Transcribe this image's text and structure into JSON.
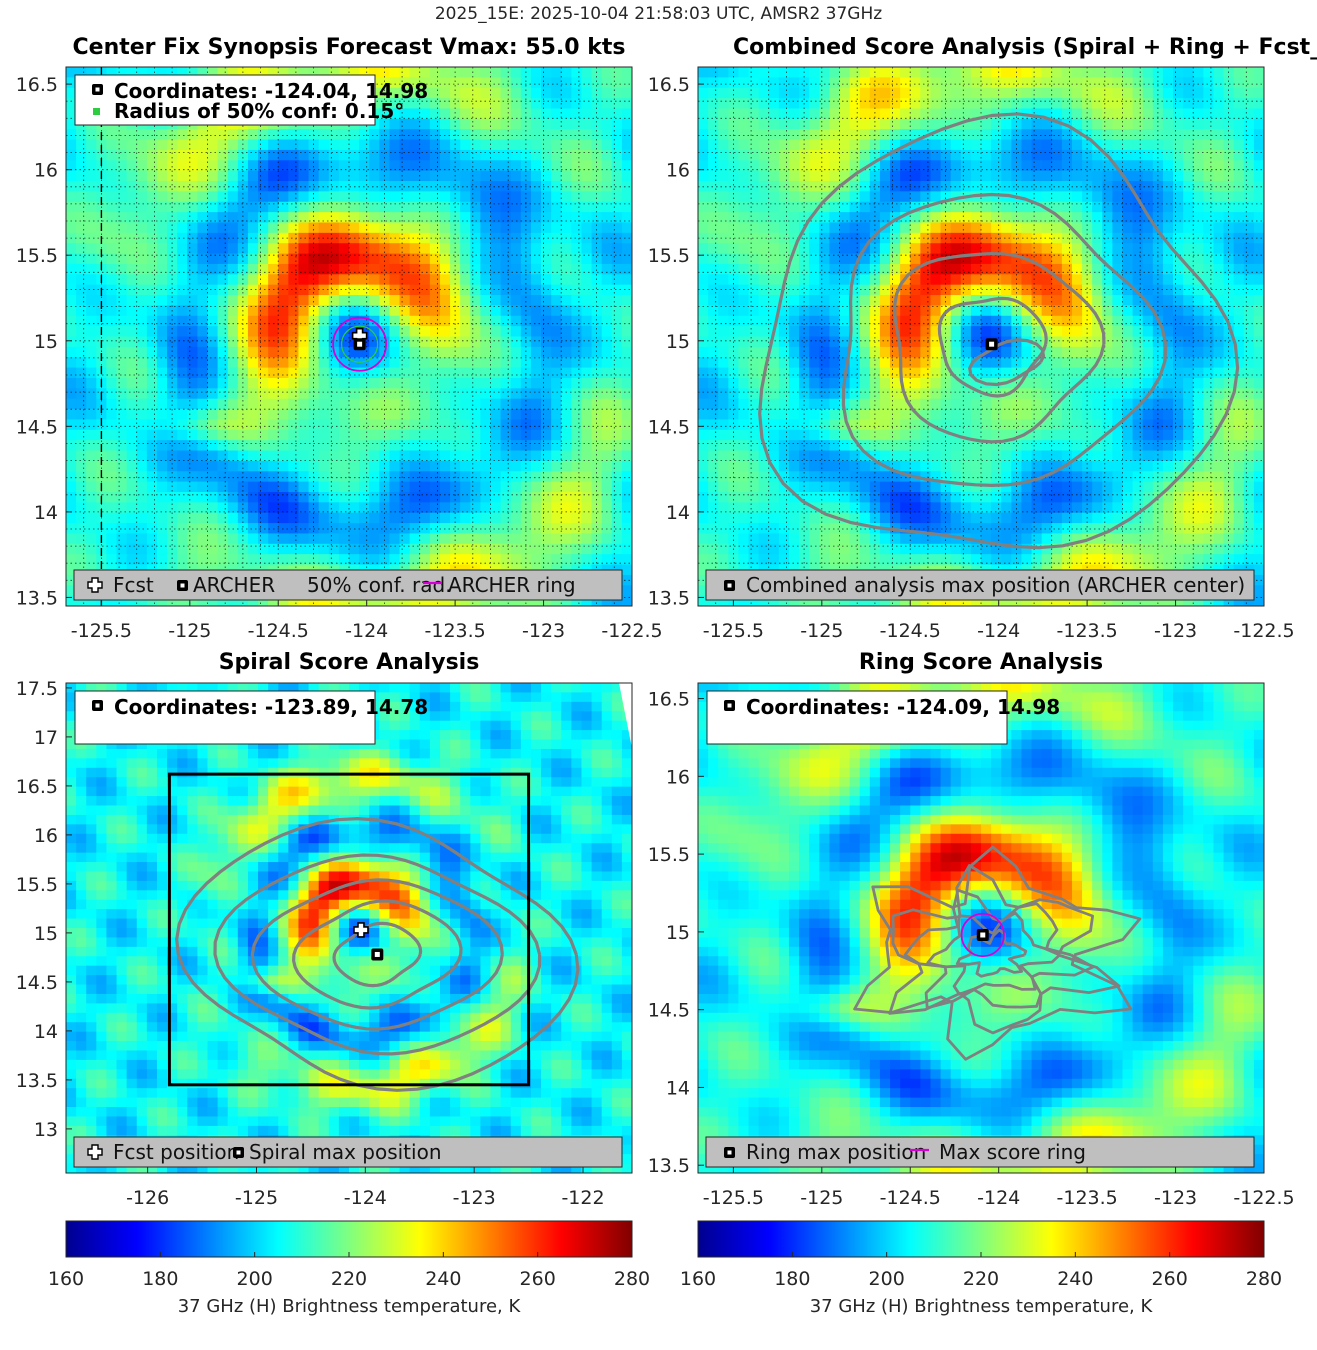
{
  "suptitle": "2025_15E: 2025-10-04 21:58:03 UTC, AMSR2 37GHz",
  "colorbar": {
    "colormap": "jet",
    "min": 160,
    "max": 280,
    "ticks": [
      "160",
      "180",
      "200",
      "220",
      "240",
      "260",
      "280"
    ],
    "label": "37 GHz (H) Brightness temperature, K"
  },
  "chart_data": [
    {
      "id": "p1",
      "type": "heatmap",
      "title": "Center Fix Synopsis     Forecast Vmax: 55.0 kts",
      "xlim": [
        -125.7,
        -122.5
      ],
      "ylim": [
        13.45,
        16.6
      ],
      "xticks": [
        -125.5,
        -125,
        -124.5,
        -124,
        -123.5,
        -123,
        -122.5
      ],
      "xtick_labels": [
        "-125.5",
        "-125",
        "-124.5",
        "-124",
        "-123.5",
        "-123",
        "-122.5"
      ],
      "yticks": [
        13.5,
        14,
        14.5,
        15,
        15.5,
        16,
        16.5
      ],
      "ytick_labels": [
        "13.5",
        "14",
        "14.5",
        "15",
        "15.5",
        "16",
        "16.5"
      ],
      "grid": true,
      "center": {
        "lon": -124.04,
        "lat": 14.98
      },
      "fcst": {
        "lon": -124.04,
        "lat": 15.03
      },
      "conf_radius": 0.15,
      "infobox": {
        "line1": "Coordinates: -124.04, 14.98",
        "line2": "Radius of 50% conf: 0.15°"
      },
      "legend": [
        "Fcst",
        "ARCHER",
        "50% conf. rad.",
        "ARCHER ring"
      ]
    },
    {
      "id": "p2",
      "type": "heatmap",
      "title": "Combined Score Analysis (Spiral + Ring + Fcst_Pe",
      "xlim": [
        -125.7,
        -122.5
      ],
      "ylim": [
        13.45,
        16.6
      ],
      "xticks": [
        -125.5,
        -125,
        -124.5,
        -124,
        -123.5,
        -123,
        -122.5
      ],
      "xtick_labels": [
        "-125.5",
        "-125",
        "-124.5",
        "-124",
        "-123.5",
        "-123",
        "-122.5"
      ],
      "yticks": [
        13.5,
        14,
        14.5,
        15,
        15.5,
        16,
        16.5
      ],
      "ytick_labels": [
        "13.5",
        "14",
        "14.5",
        "15",
        "15.5",
        "16",
        "16.5"
      ],
      "grid": true,
      "center": {
        "lon": -124.04,
        "lat": 14.98
      },
      "legend": [
        "Combined analysis max position (ARCHER center)"
      ]
    },
    {
      "id": "p3",
      "type": "heatmap",
      "title": "Spiral Score Analysis",
      "xlim": [
        -126.75,
        -121.55
      ],
      "ylim": [
        12.55,
        17.55
      ],
      "xticks": [
        -126,
        -125,
        -124,
        -123,
        -122
      ],
      "xtick_labels": [
        "-126",
        "-125",
        "-124",
        "-123",
        "-122"
      ],
      "yticks": [
        13,
        13.5,
        14,
        14.5,
        15,
        15.5,
        16,
        16.5,
        17,
        17.5
      ],
      "ytick_labels": [
        "13",
        "13.5",
        "14",
        "14.5",
        "15",
        "15.5",
        "16",
        "16.5",
        "17",
        "17.5"
      ],
      "grid": false,
      "center": {
        "lon": -123.89,
        "lat": 14.78
      },
      "fcst": {
        "lon": -124.04,
        "lat": 15.03
      },
      "box": {
        "lon": [
          -125.8,
          -122.5
        ],
        "lat": [
          13.45,
          16.62
        ]
      },
      "infobox": {
        "line1": "Coordinates: -123.89, 14.78"
      },
      "legend": [
        "Fcst position",
        "Spiral max position"
      ]
    },
    {
      "id": "p4",
      "type": "heatmap",
      "title": "Ring Score Analysis",
      "xlim": [
        -125.7,
        -122.5
      ],
      "ylim": [
        13.45,
        16.6
      ],
      "xticks": [
        -125.5,
        -125,
        -124.5,
        -124,
        -123.5,
        -123,
        -122.5
      ],
      "xtick_labels": [
        "-125.5",
        "-125",
        "-124.5",
        "-124",
        "-123.5",
        "-123",
        "-122.5"
      ],
      "yticks": [
        13.5,
        14,
        14.5,
        15,
        15.5,
        16,
        16.5
      ],
      "ytick_labels": [
        "13.5",
        "14",
        "14.5",
        "15",
        "15.5",
        "16",
        "16.5"
      ],
      "grid": false,
      "center": {
        "lon": -124.09,
        "lat": 14.98
      },
      "infobox": {
        "line1": "Coordinates: -124.09, 14.98"
      },
      "legend": [
        "Ring max position",
        "Max score ring"
      ]
    }
  ]
}
